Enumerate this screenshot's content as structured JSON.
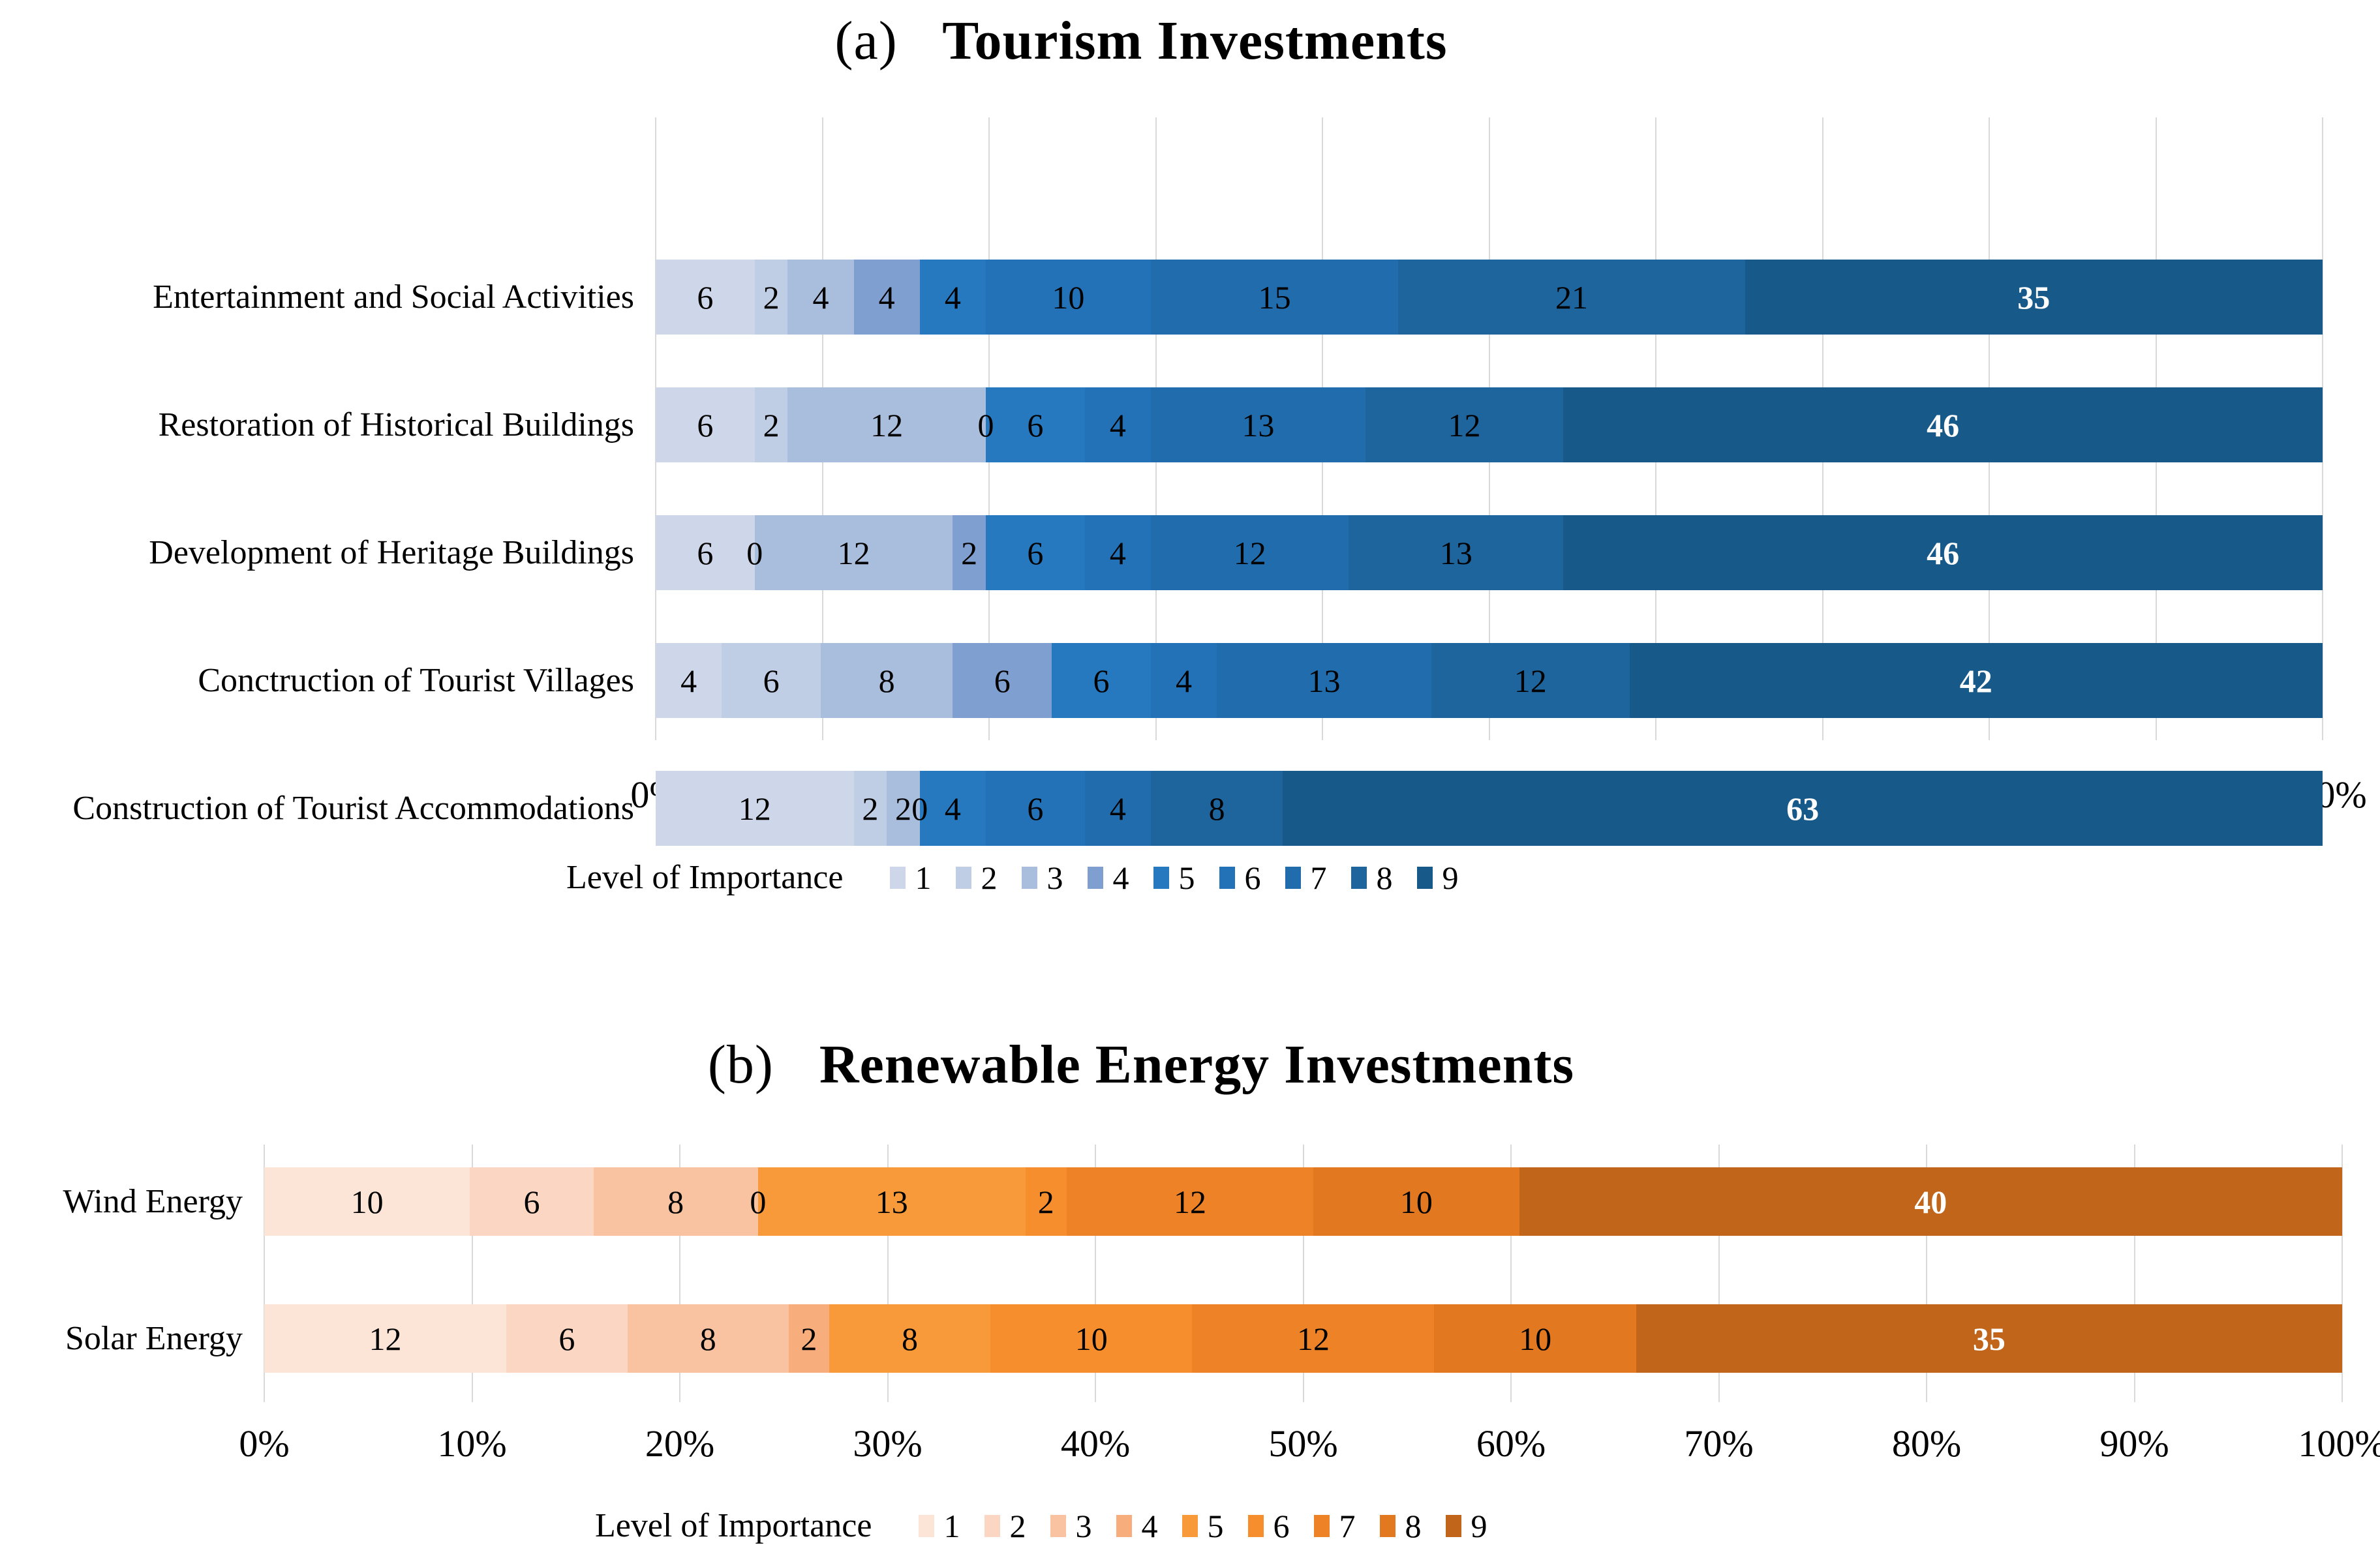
{
  "chart_data": [
    {
      "type": "bar",
      "stacked": true,
      "orientation": "horizontal",
      "panel_label": "(a)",
      "title": "Tourism Investments",
      "legend_title": "Level of Importance",
      "legend_position": "bottom",
      "grid": true,
      "xlim": [
        0,
        100
      ],
      "x_ticks": [
        "0%",
        "10%",
        "20%",
        "30%",
        "40%",
        "50%",
        "60%",
        "70%",
        "80%",
        "90%",
        "100%"
      ],
      "categories": [
        "Entertainment and Social Activities",
        "Restoration of Historical Buildings",
        "Development of Heritage Buildings",
        "Conctruction of Tourist Villages",
        "Construction of Tourist Accommodations"
      ],
      "legend_entries": [
        "1",
        "2",
        "3",
        "4",
        "5",
        "6",
        "7",
        "8",
        "9"
      ],
      "series": [
        {
          "name": "1",
          "values": [
            6,
            6,
            6,
            4,
            12
          ]
        },
        {
          "name": "2",
          "values": [
            2,
            2,
            0,
            6,
            2
          ]
        },
        {
          "name": "3",
          "values": [
            4,
            12,
            12,
            8,
            2
          ]
        },
        {
          "name": "4",
          "values": [
            4,
            0,
            2,
            6,
            0
          ]
        },
        {
          "name": "5",
          "values": [
            4,
            6,
            6,
            6,
            4
          ]
        },
        {
          "name": "6",
          "values": [
            10,
            4,
            4,
            4,
            6
          ]
        },
        {
          "name": "7",
          "values": [
            15,
            13,
            12,
            13,
            4
          ]
        },
        {
          "name": "8",
          "values": [
            21,
            12,
            13,
            12,
            8
          ]
        },
        {
          "name": "9",
          "values": [
            35,
            46,
            46,
            42,
            63
          ]
        }
      ],
      "colors": [
        "#cdd7e9",
        "#bfcde5",
        "#a9bddc",
        "#7f9fd0",
        "#2679bf",
        "#2372b7",
        "#216cac",
        "#1e649d",
        "#175a8a"
      ],
      "last_series_label_color": "#ffffff",
      "gridline_color": "#d9d9d9"
    },
    {
      "type": "bar",
      "stacked": true,
      "orientation": "horizontal",
      "panel_label": "(b)",
      "title": "Renewable Energy Investments",
      "legend_title": "Level of Importance",
      "legend_position": "bottom",
      "grid": true,
      "xlim": [
        0,
        100
      ],
      "x_ticks": [
        "0%",
        "10%",
        "20%",
        "30%",
        "40%",
        "50%",
        "60%",
        "70%",
        "80%",
        "90%",
        "100%"
      ],
      "categories": [
        "Wind Energy",
        "Solar Energy"
      ],
      "legend_entries": [
        "1",
        "2",
        "3",
        "4",
        "5",
        "6",
        "7",
        "8",
        "9"
      ],
      "series": [
        {
          "name": "1",
          "values": [
            10,
            12
          ]
        },
        {
          "name": "2",
          "values": [
            6,
            6
          ]
        },
        {
          "name": "3",
          "values": [
            8,
            8
          ]
        },
        {
          "name": "4",
          "values": [
            0,
            2
          ]
        },
        {
          "name": "5",
          "values": [
            13,
            8
          ]
        },
        {
          "name": "6",
          "values": [
            2,
            10
          ]
        },
        {
          "name": "7",
          "values": [
            12,
            12
          ]
        },
        {
          "name": "8",
          "values": [
            10,
            10
          ]
        },
        {
          "name": "9",
          "values": [
            40,
            35
          ]
        }
      ],
      "colors": [
        "#fce4d7",
        "#fbd6c2",
        "#f9c2a0",
        "#f7ad7c",
        "#f89a3a",
        "#f78e2d",
        "#ee8226",
        "#e2781f",
        "#c0651a"
      ],
      "last_series_label_color": "#ffffff",
      "gridline_color": "#d9d9d9"
    }
  ]
}
